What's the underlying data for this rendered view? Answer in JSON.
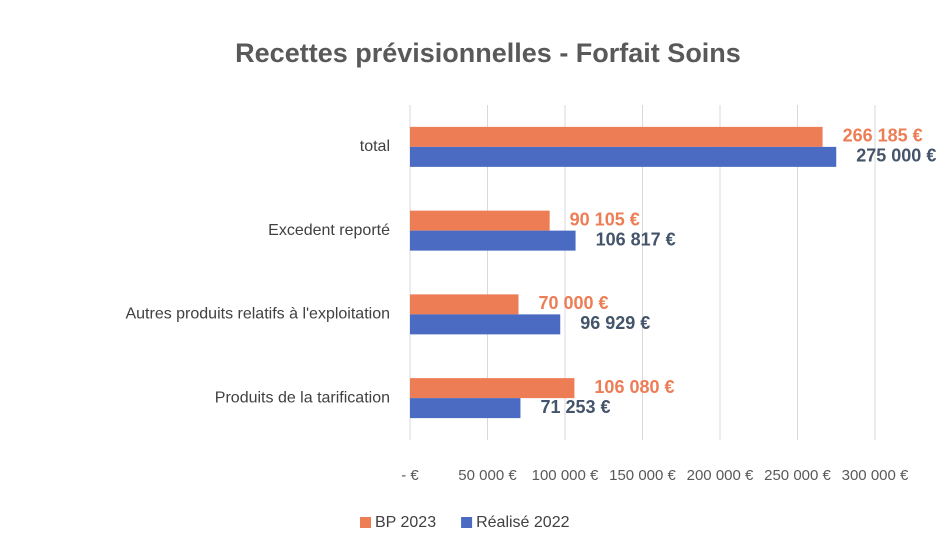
{
  "chart_data": {
    "type": "bar",
    "orientation": "horizontal",
    "title": "Recettes prévisionnelles - Forfait Soins",
    "categories": [
      "total",
      "Excedent reporté",
      "Autres produits relatifs à l'exploitation",
      "Produits de la tarification"
    ],
    "series": [
      {
        "name": "BP 2023",
        "color": "#ed7d55",
        "values": [
          266185,
          90105,
          70000,
          106080
        ],
        "value_labels": [
          "266 185 €",
          "90 105 €",
          "70 000 €",
          "106 080 €"
        ]
      },
      {
        "name": "Réalisé 2022",
        "color": "#4a6bc1",
        "values": [
          275000,
          106817,
          96929,
          71253
        ],
        "value_labels": [
          "275 000 €",
          "106 817 €",
          "96 929 €",
          "71 253 €"
        ]
      }
    ],
    "xlim": [
      0,
      300000
    ],
    "xticks": [
      {
        "value": 0,
        "label": "-   €"
      },
      {
        "value": 50000,
        "label": "50 000 €"
      },
      {
        "value": 100000,
        "label": "100 000 €"
      },
      {
        "value": 150000,
        "label": "150 000 €"
      },
      {
        "value": 200000,
        "label": "200 000 €"
      },
      {
        "value": 250000,
        "label": "250 000 €"
      },
      {
        "value": 300000,
        "label": "300 000 €"
      }
    ],
    "grid": true,
    "legend": "bottom"
  }
}
